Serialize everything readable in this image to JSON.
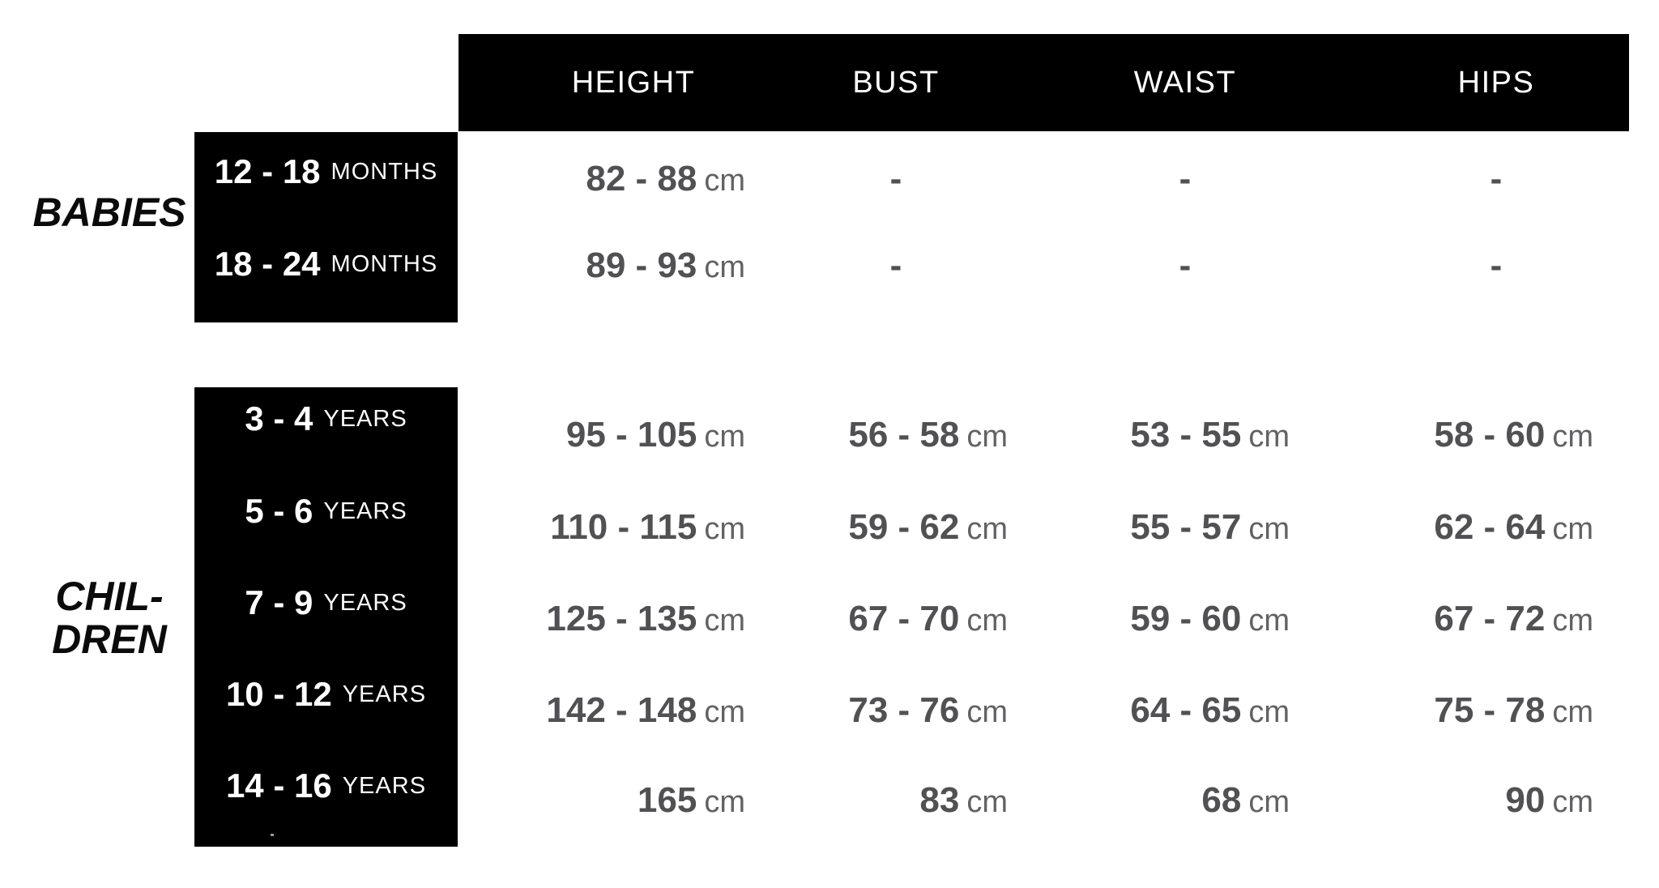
{
  "header": {
    "cols": [
      {
        "label": "HEIGHT"
      },
      {
        "label": "BUST"
      },
      {
        "label": "WAIST"
      },
      {
        "label": "HIPS"
      }
    ]
  },
  "sections": {
    "babies": {
      "label": "BABIES",
      "rows": [
        {
          "range": "12 - 18",
          "unit": "MONTHS",
          "height": {
            "v": "82 - 88",
            "u": "cm"
          },
          "bust": {
            "v": "-",
            "u": ""
          },
          "waist": {
            "v": "-",
            "u": ""
          },
          "hips": {
            "v": "-",
            "u": ""
          }
        },
        {
          "range": "18 - 24",
          "unit": "MONTHS",
          "height": {
            "v": "89 - 93",
            "u": "cm"
          },
          "bust": {
            "v": "-",
            "u": ""
          },
          "waist": {
            "v": "-",
            "u": ""
          },
          "hips": {
            "v": "-",
            "u": ""
          }
        }
      ]
    },
    "children": {
      "label_line1": "CHIL-",
      "label_line2": "DREN",
      "rows": [
        {
          "range": "3 - 4",
          "unit": "YEARS",
          "height": {
            "v": "95 - 105",
            "u": "cm"
          },
          "bust": {
            "v": "56 - 58",
            "u": "cm"
          },
          "waist": {
            "v": "53 - 55",
            "u": "cm"
          },
          "hips": {
            "v": "58 - 60",
            "u": "cm"
          }
        },
        {
          "range": "5 - 6",
          "unit": "YEARS",
          "height": {
            "v": "110 - 115",
            "u": "cm"
          },
          "bust": {
            "v": "59 - 62",
            "u": "cm"
          },
          "waist": {
            "v": "55 - 57",
            "u": "cm"
          },
          "hips": {
            "v": "62 - 64",
            "u": "cm"
          }
        },
        {
          "range": "7 - 9",
          "unit": "YEARS",
          "height": {
            "v": "125 - 135",
            "u": "cm"
          },
          "bust": {
            "v": "67 - 70",
            "u": "cm"
          },
          "waist": {
            "v": "59 - 60",
            "u": "cm"
          },
          "hips": {
            "v": "67 - 72",
            "u": "cm"
          }
        },
        {
          "range": "10 - 12",
          "unit": "YEARS",
          "height": {
            "v": "142 - 148",
            "u": "cm"
          },
          "bust": {
            "v": "73 - 76",
            "u": "cm"
          },
          "waist": {
            "v": "64 - 65",
            "u": "cm"
          },
          "hips": {
            "v": "75 - 78",
            "u": "cm"
          }
        },
        {
          "range": "14 - 16",
          "unit": "YEARS",
          "height": {
            "v": "165",
            "u": "cm"
          },
          "bust": {
            "v": "83",
            "u": "cm"
          },
          "waist": {
            "v": "68",
            "u": "cm"
          },
          "hips": {
            "v": "90",
            "u": "cm"
          }
        }
      ]
    }
  },
  "colors": {
    "header_bg": "#000000",
    "header_text": "#ffffff",
    "label_bg": "#000000",
    "label_text": "#ffffff",
    "value_text": "#515153",
    "unit_text": "#626264",
    "section_label_text": "#0b0b0b",
    "background": "#ffffff"
  }
}
